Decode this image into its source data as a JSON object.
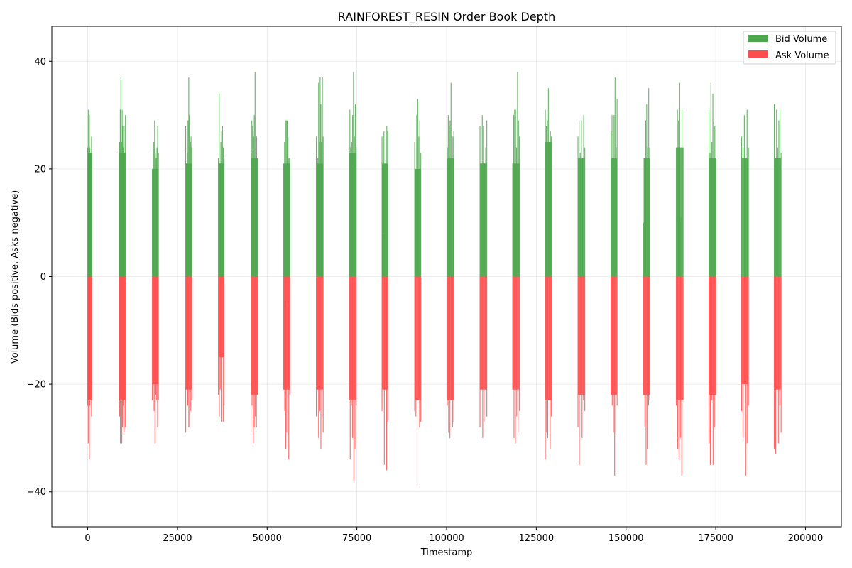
{
  "chart_data": {
    "type": "bar",
    "title": "RAINFOREST_RESIN Order Book Depth",
    "xlabel": "Timestamp",
    "ylabel": "Volume (Bids positive, Asks negative)",
    "xlim": [
      -10000,
      210000
    ],
    "ylim": [
      -46.5,
      46.5
    ],
    "x_ticks": [
      0,
      25000,
      50000,
      75000,
      100000,
      125000,
      150000,
      175000,
      200000
    ],
    "y_ticks": [
      -40,
      -20,
      0,
      20,
      40
    ],
    "grid": true,
    "legend_position": "top-right",
    "colors": {
      "bid": "#4CA64C",
      "ask": "#FF4D4D"
    },
    "series": [
      {
        "name": "Bid Volume",
        "clusters": [
          {
            "start": 0,
            "end": 1200,
            "values": [
              24,
              31,
              23,
              30,
              24,
              23,
              23,
              26,
              23
            ]
          },
          {
            "start": 8700,
            "end": 10500,
            "values": [
              23,
              25,
              31,
              37,
              25,
              31,
              28,
              24,
              28,
              23,
              30
            ]
          },
          {
            "start": 18000,
            "end": 19700,
            "values": [
              20,
              23,
              25,
              29,
              23,
              22,
              24,
              28,
              23
            ]
          },
          {
            "start": 27300,
            "end": 29000,
            "values": [
              28,
              21,
              23,
              29,
              37,
              30,
              25,
              26,
              24
            ]
          },
          {
            "start": 36400,
            "end": 38000,
            "values": [
              22,
              34,
              21,
              25,
              27,
              28,
              24,
              22
            ]
          },
          {
            "start": 45500,
            "end": 47300,
            "values": [
              23,
              29,
              28,
              26,
              30,
              38,
              22,
              26,
              22
            ]
          },
          {
            "start": 54600,
            "end": 56300,
            "values": [
              21,
              25,
              29,
              29,
              29,
              26,
              22,
              22
            ]
          },
          {
            "start": 63700,
            "end": 65600,
            "values": [
              26,
              21,
              22,
              36,
              25,
              37,
              32,
              25,
              37,
              26
            ]
          },
          {
            "start": 72800,
            "end": 74800,
            "values": [
              23,
              31,
              24,
              25,
              30,
              38,
              26,
              32,
              24
            ]
          },
          {
            "start": 82000,
            "end": 83600,
            "values": [
              26,
              8,
              27,
              21,
              25,
              28,
              27
            ]
          },
          {
            "start": 91100,
            "end": 92800,
            "values": [
              25,
              20,
              30,
              33,
              26,
              29,
              23
            ]
          },
          {
            "start": 100200,
            "end": 102000,
            "values": [
              24,
              30,
              28,
              29,
              36,
              22,
              26,
              27
            ]
          },
          {
            "start": 109300,
            "end": 111200,
            "values": [
              28,
              21,
              30,
              28,
              21,
              24,
              29
            ]
          },
          {
            "start": 118400,
            "end": 120300,
            "values": [
              21,
              30,
              31,
              31,
              24,
              38,
              29,
              26
            ]
          },
          {
            "start": 127500,
            "end": 129200,
            "values": [
              31,
              28,
              29,
              35,
              25,
              27,
              26
            ]
          },
          {
            "start": 136600,
            "end": 138500,
            "values": [
              26,
              29,
              23,
              29,
              22,
              30,
              24
            ]
          },
          {
            "start": 145800,
            "end": 147500,
            "values": [
              27,
              30,
              22,
              30,
              37,
              24,
              33
            ]
          },
          {
            "start": 154900,
            "end": 156600,
            "values": [
              10,
              22,
              29,
              32,
              24,
              35,
              24
            ]
          },
          {
            "start": 164000,
            "end": 165900,
            "values": [
              24,
              31,
              29,
              36,
              11,
              31,
              24
            ]
          },
          {
            "start": 173100,
            "end": 175000,
            "values": [
              31,
              23,
              36,
              25,
              34,
              29,
              28,
              22
            ]
          },
          {
            "start": 182200,
            "end": 184100,
            "values": [
              26,
              24,
              30,
              22,
              31,
              24
            ]
          },
          {
            "start": 191300,
            "end": 193200,
            "values": [
              32,
              22,
              31,
              24,
              29,
              31,
              23
            ]
          }
        ]
      },
      {
        "name": "Ask Volume",
        "clusters": [
          {
            "start": 0,
            "end": 1200,
            "values": [
              -24,
              -31,
              -23,
              -34,
              -24,
              -23,
              -23,
              -26,
              -23
            ]
          },
          {
            "start": 8700,
            "end": 10500,
            "values": [
              -23,
              -26,
              -31,
              -23,
              -31,
              -28,
              -24,
              -29,
              -23,
              -28
            ]
          },
          {
            "start": 18000,
            "end": 19700,
            "values": [
              -23,
              -20,
              -25,
              -31,
              -22,
              -23,
              -28,
              -23
            ]
          },
          {
            "start": 27300,
            "end": 29000,
            "values": [
              -29,
              -21,
              -24,
              -28,
              -28,
              -25,
              -23
            ]
          },
          {
            "start": 36400,
            "end": 38000,
            "values": [
              -22,
              -26,
              -21,
              -27,
              -15,
              -27,
              -24
            ]
          },
          {
            "start": 45500,
            "end": 47300,
            "values": [
              -29,
              -24,
              -31,
              -28,
              -26,
              -28,
              -22
            ]
          },
          {
            "start": 54600,
            "end": 56300,
            "values": [
              -21,
              -25,
              -32,
              -29,
              -5,
              -34,
              -22
            ]
          },
          {
            "start": 63700,
            "end": 65600,
            "values": [
              -26,
              -21,
              -30,
              -25,
              -32,
              -26,
              -29
            ]
          },
          {
            "start": 72800,
            "end": 74800,
            "values": [
              -23,
              -34,
              -24,
              -30,
              -38,
              -32,
              -24
            ]
          },
          {
            "start": 82000,
            "end": 83600,
            "values": [
              -25,
              -21,
              -35,
              -21,
              -36,
              -27
            ]
          },
          {
            "start": 91100,
            "end": 92800,
            "values": [
              -25,
              -26,
              -39,
              -23,
              -28,
              -27
            ]
          },
          {
            "start": 100200,
            "end": 102000,
            "values": [
              -24,
              -29,
              -30,
              -23,
              -28,
              -27
            ]
          },
          {
            "start": 109300,
            "end": 111200,
            "values": [
              -28,
              -21,
              -30,
              -27,
              -21,
              -26
            ]
          },
          {
            "start": 118400,
            "end": 120300,
            "values": [
              -21,
              -30,
              -31,
              -26,
              -29,
              -25
            ]
          },
          {
            "start": 127500,
            "end": 129200,
            "values": [
              -34,
              -29,
              -30,
              -23,
              -32,
              -26
            ]
          },
          {
            "start": 136600,
            "end": 138500,
            "values": [
              -28,
              -35,
              -22,
              -30,
              -23,
              -25
            ]
          },
          {
            "start": 145800,
            "end": 147500,
            "values": [
              -22,
              -24,
              -29,
              -37,
              -29,
              -24
            ]
          },
          {
            "start": 154900,
            "end": 156600,
            "values": [
              -22,
              -28,
              -35,
              -32,
              -24,
              -23
            ]
          },
          {
            "start": 164000,
            "end": 165900,
            "values": [
              -24,
              -32,
              -34,
              -30,
              -37,
              -23
            ]
          },
          {
            "start": 173100,
            "end": 175000,
            "values": [
              -31,
              -35,
              -23,
              -35,
              -28,
              -22
            ]
          },
          {
            "start": 182200,
            "end": 184100,
            "values": [
              -25,
              -30,
              -20,
              -37,
              -31,
              -24
            ]
          },
          {
            "start": 191300,
            "end": 193200,
            "values": [
              -32,
              -33,
              -21,
              -31,
              -24,
              -29
            ]
          }
        ]
      }
    ]
  }
}
